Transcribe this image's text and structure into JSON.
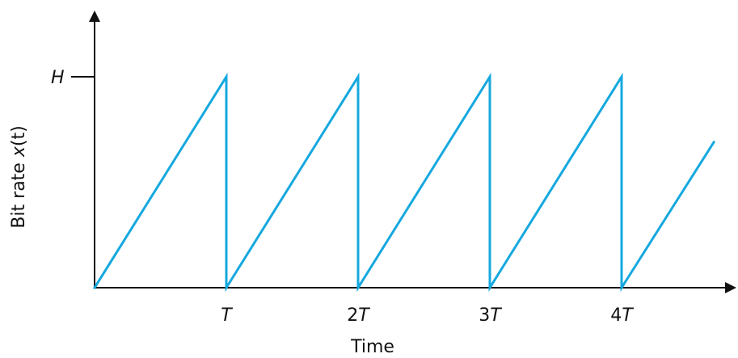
{
  "chart_data": {
    "type": "line",
    "title": "",
    "xlabel": "Time",
    "ylabel": "Bit rate x(t)",
    "x_tick_labels": [
      "T",
      "2T",
      "3T",
      "4T"
    ],
    "y_tick_labels": [
      "H"
    ],
    "xlim": [
      0,
      4.7
    ],
    "ylim": [
      0,
      1.4
    ],
    "grid": false,
    "series": [
      {
        "color": "#15a8df",
        "points": [
          {
            "x": 0,
            "y": 0
          },
          {
            "x": 1,
            "y": 1
          },
          {
            "x": 1,
            "y": 0
          },
          {
            "x": 2,
            "y": 1
          },
          {
            "x": 2,
            "y": 0
          },
          {
            "x": 3,
            "y": 1
          },
          {
            "x": 3,
            "y": 0
          },
          {
            "x": 4,
            "y": 1
          },
          {
            "x": 4,
            "y": 0
          },
          {
            "x": 4.7,
            "y": 0.69
          }
        ]
      }
    ]
  }
}
